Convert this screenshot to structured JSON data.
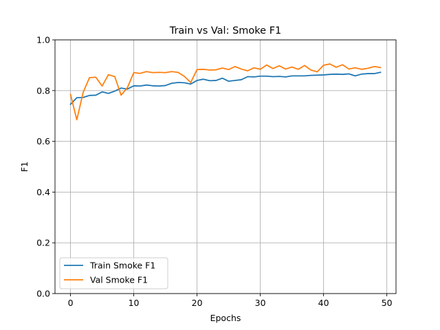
{
  "chart_data": {
    "type": "line",
    "title": "Train vs Val: Smoke F1",
    "xlabel": "Epochs",
    "ylabel": "F1",
    "xlim": [
      -2.45,
      51.45
    ],
    "ylim": [
      0.0,
      1.0
    ],
    "xticks": [
      0,
      10,
      20,
      30,
      40,
      50
    ],
    "xtick_labels": [
      "0",
      "10",
      "20",
      "30",
      "40",
      "50"
    ],
    "yticks": [
      0.0,
      0.2,
      0.4,
      0.6,
      0.8,
      1.0
    ],
    "ytick_labels": [
      "0.0",
      "0.2",
      "0.4",
      "0.6",
      "0.8",
      "1.0"
    ],
    "grid": true,
    "legend_position": "lower-left",
    "x": [
      0,
      1,
      2,
      3,
      4,
      5,
      6,
      7,
      8,
      9,
      10,
      11,
      12,
      13,
      14,
      15,
      16,
      17,
      18,
      19,
      20,
      21,
      22,
      23,
      24,
      25,
      26,
      27,
      28,
      29,
      30,
      31,
      32,
      33,
      34,
      35,
      36,
      37,
      38,
      39,
      40,
      41,
      42,
      43,
      44,
      45,
      46,
      47,
      48,
      49
    ],
    "series": [
      {
        "name": "Train Smoke F1",
        "color": "#1f77b4",
        "values": [
          0.746,
          0.772,
          0.773,
          0.781,
          0.782,
          0.795,
          0.789,
          0.798,
          0.81,
          0.806,
          0.819,
          0.818,
          0.822,
          0.819,
          0.818,
          0.82,
          0.829,
          0.832,
          0.831,
          0.826,
          0.84,
          0.845,
          0.839,
          0.84,
          0.849,
          0.837,
          0.84,
          0.843,
          0.855,
          0.854,
          0.857,
          0.857,
          0.855,
          0.856,
          0.854,
          0.858,
          0.858,
          0.858,
          0.86,
          0.861,
          0.862,
          0.864,
          0.865,
          0.864,
          0.866,
          0.858,
          0.865,
          0.867,
          0.867,
          0.872
        ]
      },
      {
        "name": "Val Smoke F1",
        "color": "#ff7f0e",
        "values": [
          0.785,
          0.685,
          0.793,
          0.851,
          0.853,
          0.818,
          0.863,
          0.855,
          0.782,
          0.812,
          0.871,
          0.868,
          0.875,
          0.871,
          0.872,
          0.871,
          0.875,
          0.872,
          0.856,
          0.832,
          0.883,
          0.884,
          0.881,
          0.882,
          0.889,
          0.883,
          0.895,
          0.885,
          0.878,
          0.89,
          0.884,
          0.901,
          0.887,
          0.898,
          0.885,
          0.893,
          0.884,
          0.899,
          0.881,
          0.874,
          0.9,
          0.905,
          0.892,
          0.902,
          0.885,
          0.89,
          0.884,
          0.888,
          0.895,
          0.891
        ]
      }
    ]
  }
}
